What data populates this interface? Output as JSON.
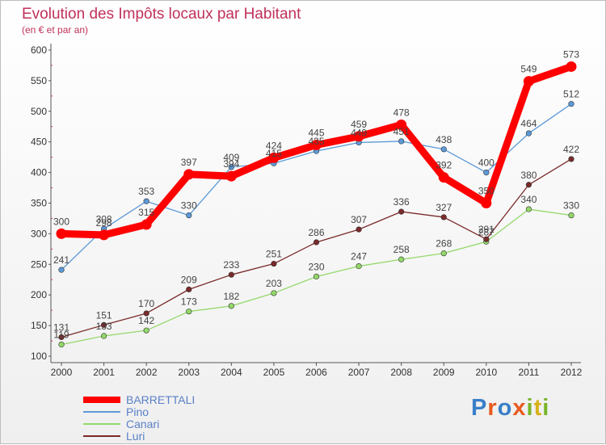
{
  "header": {
    "title": "Evolution des Impôts locaux par Habitant",
    "subtitle": "(en € et par an)"
  },
  "logo": {
    "text": "Proxiti",
    "letters": [
      "P",
      "r",
      "o",
      "x",
      "i",
      "t",
      "i"
    ],
    "letter_colors": [
      "#3a7fc8",
      "#e85a1e",
      "#3a7fc8",
      "#e85a1e",
      "#78b428",
      "#d8b01a",
      "#78b428"
    ]
  },
  "chart_data": {
    "type": "line",
    "title": "Evolution des Impôts locaux par Habitant",
    "subtitle": "(en € et par an)",
    "xlabel": "",
    "ylabel": "",
    "x": [
      "2000",
      "2001",
      "2002",
      "2003",
      "2004",
      "2005",
      "2006",
      "2007",
      "2008",
      "2009",
      "2010",
      "2011",
      "2012"
    ],
    "ylim": [
      100,
      600
    ],
    "yticks": [
      100,
      150,
      200,
      250,
      300,
      350,
      400,
      450,
      500,
      550,
      600
    ],
    "grid": false,
    "legend": "bottom-left",
    "series": [
      {
        "name": "BARRETTALI",
        "color": "#ff0000",
        "width": 9,
        "marker": 6.5,
        "values": [
          300,
          298,
          315,
          397,
          394,
          424,
          445,
          459,
          478,
          392,
          350,
          549,
          573
        ],
        "labels": [
          "300",
          "298",
          "315",
          "397",
          "394",
          "424",
          "445",
          "459",
          "478",
          "392",
          "350",
          "549",
          "573"
        ]
      },
      {
        "name": "Pino",
        "color": "#5c9ad8",
        "width": 1.3,
        "marker": 3.3,
        "values": [
          241,
          308,
          353,
          330,
          409,
          415,
          435,
          449,
          451,
          438,
          400,
          464,
          512
        ],
        "labels": [
          "241",
          "308",
          "353",
          "330",
          "409",
          "415",
          "435",
          "449",
          "451",
          "438",
          "400",
          "464",
          "512"
        ]
      },
      {
        "name": "Canari",
        "color": "#93d86a",
        "width": 1.3,
        "marker": 3.3,
        "values": [
          119,
          133,
          142,
          173,
          182,
          203,
          230,
          247,
          258,
          268,
          287,
          340,
          330
        ],
        "labels": [
          "119",
          "133",
          "142",
          "173",
          "182",
          "203",
          "230",
          "247",
          "258",
          "268",
          "287",
          "340",
          "330"
        ]
      },
      {
        "name": "Luri",
        "color": "#7a2a2a",
        "width": 1.3,
        "marker": 3.3,
        "values": [
          131,
          151,
          170,
          209,
          233,
          251,
          286,
          307,
          336,
          327,
          291,
          380,
          422
        ],
        "labels": [
          "131",
          "151",
          "170",
          "209",
          "233",
          "251",
          "286",
          "307",
          "336",
          "327",
          "291",
          "380",
          "422"
        ]
      }
    ]
  }
}
